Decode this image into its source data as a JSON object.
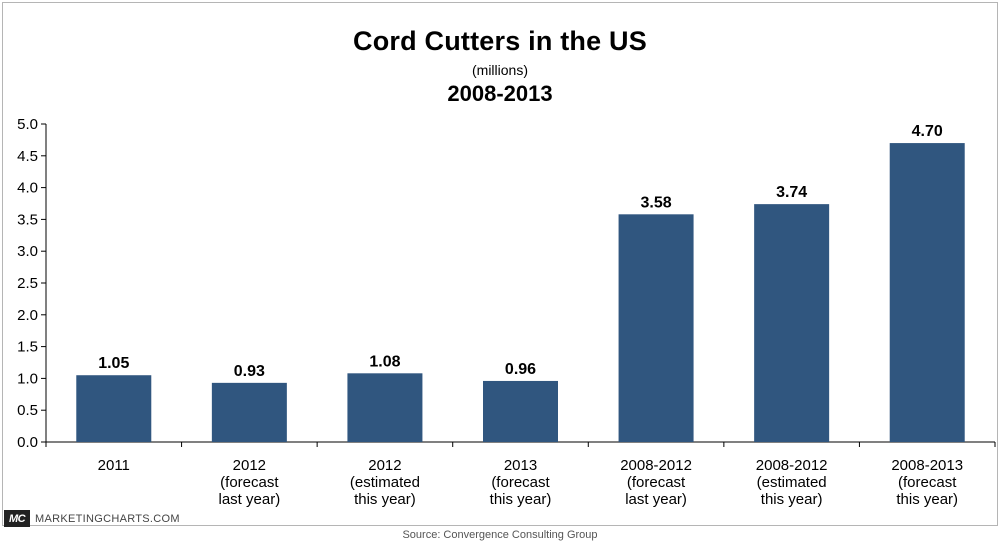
{
  "chart_data": {
    "type": "bar",
    "title": "Cord Cutters in the US",
    "subtitle": "(millions)",
    "period": "2008-2013",
    "categories": [
      [
        "2011"
      ],
      [
        "2012",
        "(forecast",
        "last year)"
      ],
      [
        "2012",
        "(estimated",
        "this year)"
      ],
      [
        "2013",
        "(forecast",
        "this year)"
      ],
      [
        "2008-2012",
        "(forecast",
        "last year)"
      ],
      [
        "2008-2012",
        "(estimated",
        "this year)"
      ],
      [
        "2008-2013",
        "(forecast",
        "this year)"
      ]
    ],
    "values": [
      1.05,
      0.93,
      1.08,
      0.96,
      3.58,
      3.74,
      4.7
    ],
    "value_labels": [
      "1.05",
      "0.93",
      "1.08",
      "0.96",
      "3.58",
      "3.74",
      "4.70"
    ],
    "ylim": [
      0,
      5
    ],
    "yticks": [
      "0.0",
      "0.5",
      "1.0",
      "1.5",
      "2.0",
      "2.5",
      "3.0",
      "3.5",
      "4.0",
      "4.5",
      "5.0"
    ],
    "xlabel": "",
    "ylabel": "",
    "bar_color": "#30567f"
  },
  "branding": {
    "logo": "MC",
    "site": "MARKETINGCHARTS.COM"
  },
  "source": "Source: Convergence Consulting Group"
}
